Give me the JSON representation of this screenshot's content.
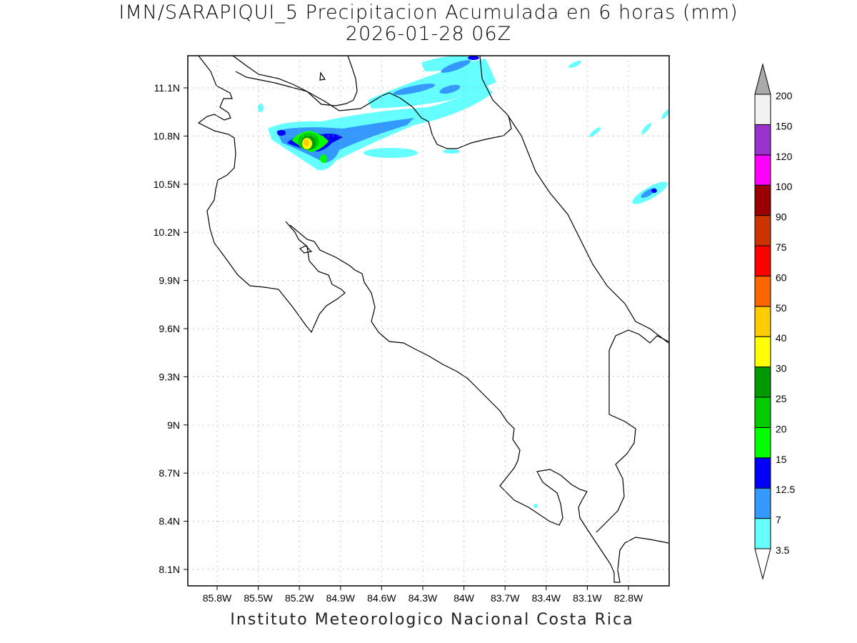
{
  "title_line1": "IMN/SARAPIQUI_5 Precipitacion Acumulada en 6 horas (mm)",
  "title_line2": "2026-01-28 06Z",
  "footer": "Instituto Meteorologico Nacional Costa Rica",
  "lat_labels": [
    "11.1N",
    "10.8N",
    "10.5N",
    "10.2N",
    "9.9N",
    "9.6N",
    "9.3N",
    "9N",
    "8.7N",
    "8.4N",
    "8.1N"
  ],
  "lon_labels": [
    "85.8W",
    "85.5W",
    "85.2W",
    "84.9W",
    "84.6W",
    "84.3W",
    "84W",
    "83.7W",
    "83.4W",
    "83.1W",
    "82.8W"
  ],
  "colorbar": {
    "levels": [
      "3.5",
      "7",
      "12.5",
      "15",
      "20",
      "25",
      "30",
      "40",
      "50",
      "60",
      "75",
      "90",
      "100",
      "120",
      "150",
      "200"
    ],
    "colors": [
      "#66ffff",
      "#3399ff",
      "#0000ff",
      "#00ff00",
      "#00cc00",
      "#009900",
      "#ffff00",
      "#ffcc00",
      "#ff6600",
      "#ff0000",
      "#cc3300",
      "#990000",
      "#ff00ff",
      "#9933cc",
      "#f2f2f2"
    ],
    "over_color": "#aaaaaa"
  }
}
